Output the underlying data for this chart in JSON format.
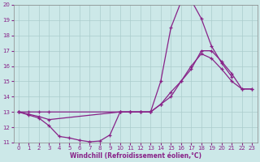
{
  "xlabel": "Windchill (Refroidissement éolien,°C)",
  "bg_color": "#cce8e8",
  "line_color": "#882288",
  "grid_color": "#aacccc",
  "xlim": [
    -0.5,
    23.5
  ],
  "ylim": [
    11,
    20
  ],
  "yticks": [
    11,
    12,
    13,
    14,
    15,
    16,
    17,
    18,
    19,
    20
  ],
  "xticks": [
    0,
    1,
    2,
    3,
    4,
    5,
    6,
    7,
    8,
    9,
    10,
    11,
    12,
    13,
    14,
    15,
    16,
    17,
    18,
    19,
    20,
    21,
    22,
    23
  ],
  "line1_x": [
    0,
    1,
    2,
    3,
    4,
    5,
    6,
    7,
    8,
    9,
    10,
    11,
    12,
    13,
    14,
    15,
    16,
    17,
    18,
    19,
    20,
    21
  ],
  "line1_y": [
    13.0,
    12.8,
    12.6,
    12.1,
    11.4,
    11.3,
    11.15,
    11.05,
    11.1,
    11.5,
    13.0,
    13.0,
    13.0,
    13.0,
    15.0,
    18.5,
    20.2,
    20.3,
    19.1,
    17.3,
    16.2,
    15.3
  ],
  "line2_x": [
    0,
    1,
    2,
    3,
    10,
    11,
    12,
    13,
    14,
    15,
    16,
    17,
    18,
    19,
    20,
    21,
    22,
    23
  ],
  "line2_y": [
    13.0,
    12.85,
    12.7,
    12.5,
    13.0,
    13.0,
    13.0,
    13.0,
    13.5,
    14.3,
    15.0,
    15.8,
    17.0,
    17.0,
    16.3,
    15.5,
    14.5,
    14.5
  ],
  "line3_x": [
    0,
    1,
    2,
    3,
    10,
    11,
    12,
    13,
    14,
    15,
    16,
    17,
    18,
    19,
    20,
    21,
    22,
    23
  ],
  "line3_y": [
    13.0,
    13.0,
    13.0,
    13.0,
    13.0,
    13.0,
    13.0,
    13.0,
    13.5,
    14.0,
    15.0,
    16.0,
    16.8,
    16.5,
    15.8,
    15.0,
    14.5,
    14.5
  ]
}
